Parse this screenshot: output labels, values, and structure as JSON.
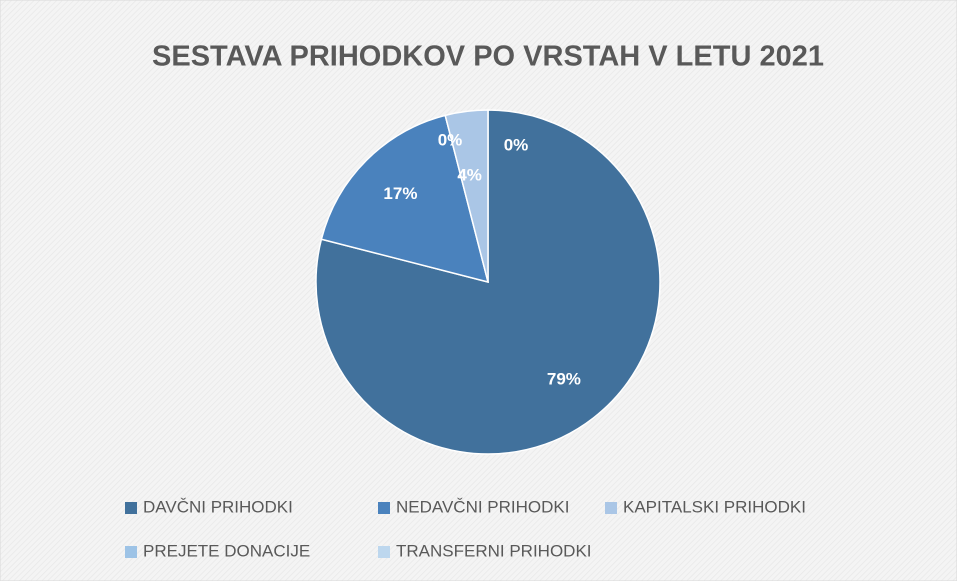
{
  "chart_data": {
    "type": "pie",
    "title": "SESTAVA PRIHODKOV PO VRSTAH V LETU 2021",
    "categories": [
      "DAVČNI PRIHODKI",
      "NEDAVČNI PRIHODKI",
      "KAPITALSKI PRIHODKI",
      "PREJETE DONACIJE",
      "TRANSFERNI PRIHODKI"
    ],
    "values": [
      79,
      17,
      4,
      0,
      0
    ],
    "value_labels": [
      "79%",
      "17%",
      "4%",
      "0%",
      "0%"
    ],
    "colors": [
      "#41719c",
      "#4a82bd",
      "#aac6e6",
      "#9dc3e6",
      "#bdd7ee"
    ],
    "legend": "bottom"
  }
}
